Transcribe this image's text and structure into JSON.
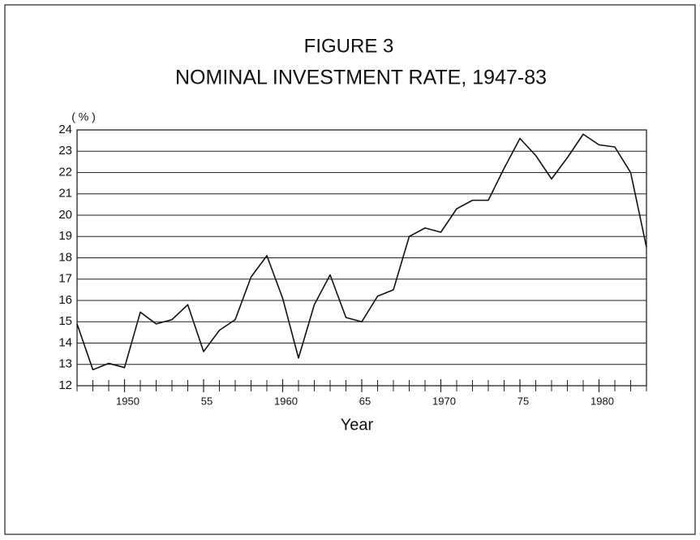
{
  "chart_data": {
    "type": "line",
    "title": "FIGURE 3",
    "subtitle": "NOMINAL INVESTMENT RATE, 1947-83",
    "y_label": "( % )",
    "x_label": "Year",
    "x": [
      1947,
      1948,
      1949,
      1950,
      1951,
      1952,
      1953,
      1954,
      1955,
      1956,
      1957,
      1958,
      1959,
      1960,
      1961,
      1962,
      1963,
      1964,
      1965,
      1966,
      1967,
      1968,
      1969,
      1970,
      1971,
      1972,
      1973,
      1974,
      1975,
      1976,
      1977,
      1978,
      1979,
      1980,
      1981,
      1982,
      1983
    ],
    "series": [
      {
        "color": "#111111",
        "values": [
          14.9,
          12.75,
          13.05,
          12.85,
          15.45,
          14.9,
          15.1,
          15.8,
          13.6,
          14.6,
          15.1,
          17.1,
          18.1,
          16.1,
          13.3,
          15.8,
          17.2,
          15.2,
          15.0,
          16.2,
          16.5,
          19.0,
          19.4,
          19.2,
          20.3,
          20.7,
          20.7,
          22.2,
          23.6,
          22.8,
          21.7,
          22.7,
          23.8,
          23.3,
          23.2,
          22.0,
          18.5
        ]
      }
    ],
    "xlim": [
      1947,
      1983
    ],
    "xticks": [
      1950,
      {
        "value": 1955,
        "label": "55"
      },
      1960,
      {
        "value": 1965,
        "label": "65"
      },
      1970,
      {
        "value": 1975,
        "label": "75"
      },
      1980
    ],
    "ylim": [
      12,
      24
    ],
    "yticks": [
      12,
      13,
      14,
      15,
      16,
      17,
      18,
      19,
      20,
      21,
      22,
      23,
      24
    ],
    "grid": true
  }
}
